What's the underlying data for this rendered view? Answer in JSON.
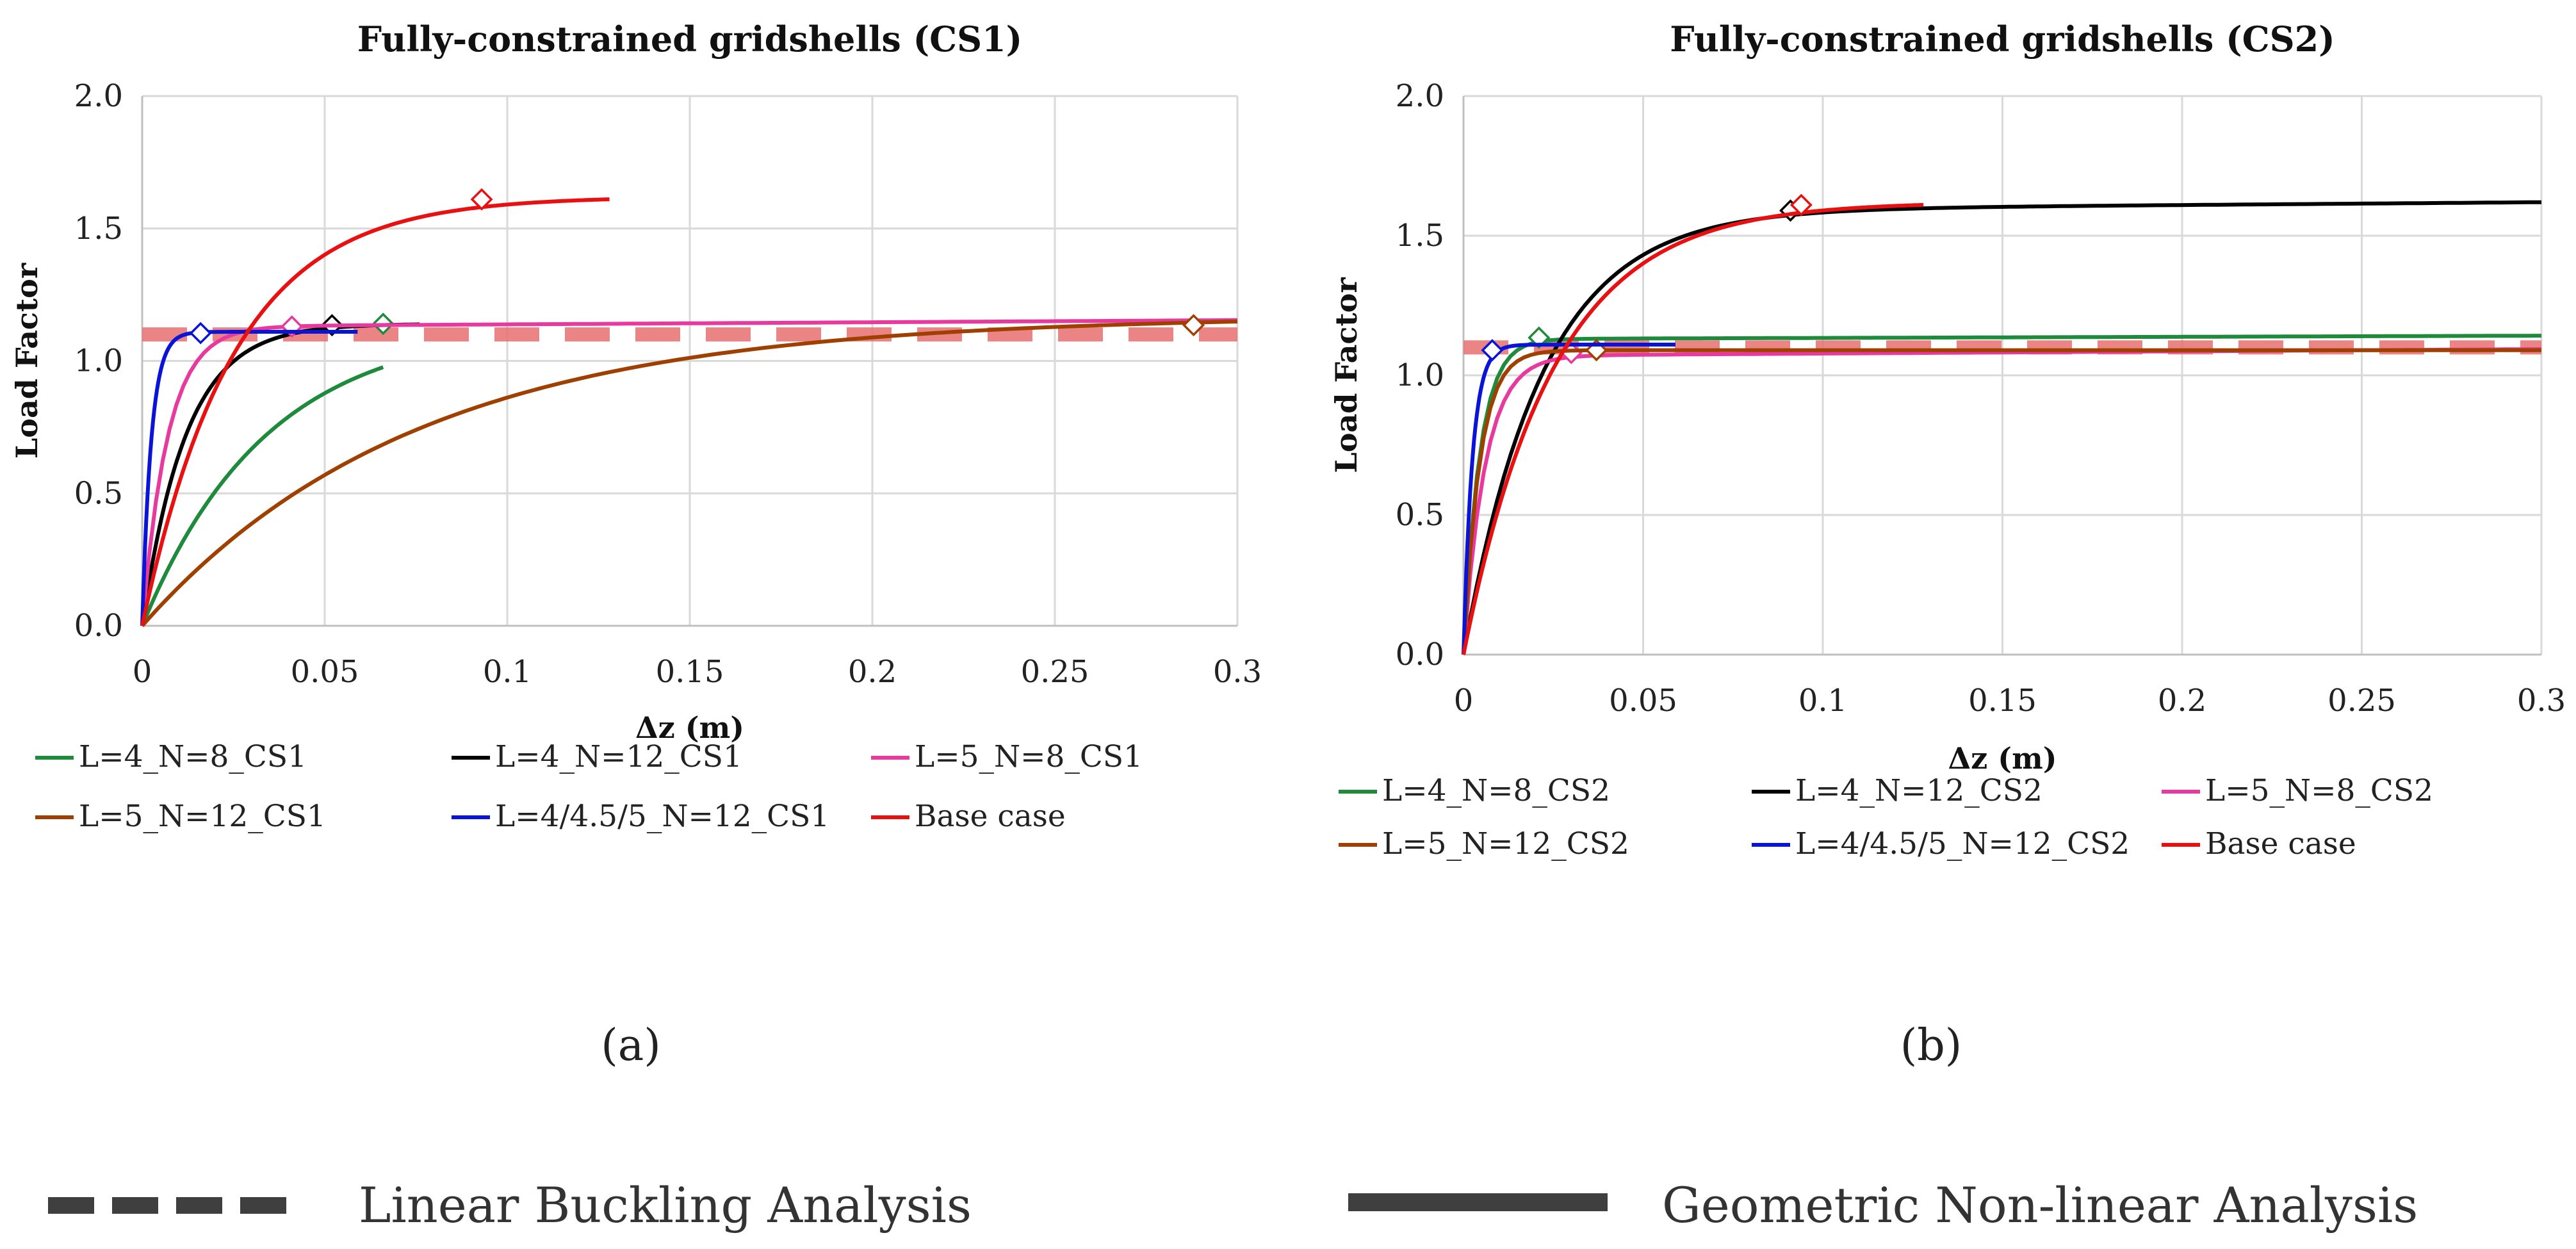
{
  "figure": {
    "caption_a": "(a)",
    "caption_b": "(b)",
    "line_legend": [
      {
        "label": "Linear Buckling Analysis",
        "style": "dashed"
      },
      {
        "label": "Geometric Non-linear Analysis",
        "style": "solid"
      }
    ],
    "line_legend_color": "#3f3f3f"
  },
  "chart_data": [
    {
      "type": "line",
      "title": "Fully-constrained gridshells (CS1)",
      "xlabel": "Δz (m)",
      "ylabel": "Load Factor",
      "xlim": [
        0,
        0.3
      ],
      "ylim": [
        0,
        2.0
      ],
      "xticks": [
        0,
        0.05,
        0.1,
        0.15,
        0.2,
        0.25,
        0.3
      ],
      "xtick_labels": [
        "0",
        "0.05",
        "0.1",
        "0.15",
        "0.2",
        "0.25",
        "0.3"
      ],
      "yticks": [
        0,
        0.5,
        1.0,
        1.5,
        2.0
      ],
      "ytick_labels": [
        "0.0",
        "0.5",
        "1.0",
        "1.5",
        "2.0"
      ],
      "grid": true,
      "legend_position": "bottom",
      "series": [
        {
          "name": "L=4_N=8_CS1",
          "color": "#1e8a3c",
          "curve": {
            "ymax": 1.14,
            "x0": 0.034,
            "xend": 0.066
          },
          "lba": 1.1,
          "marker": [
            0.066,
            1.14
          ]
        },
        {
          "name": "L=4_N=12_CS1",
          "color": "#000000",
          "curve": {
            "ymax": 1.14,
            "x0": 0.012,
            "xend": 0.076
          },
          "lba": 1.1,
          "marker": [
            0.052,
            1.135
          ]
        },
        {
          "name": "L=5_N=8_CS1",
          "color": "#e8399f",
          "curve": {
            "ymax": 1.13,
            "x0": 0.007,
            "xend": 0.3,
            "slope": 0.08
          },
          "lba": 1.1,
          "marker": [
            0.041,
            1.13
          ]
        },
        {
          "name": "L=5_N=12_CS1",
          "color": "#a04000",
          "curve": {
            "ymax": 1.17,
            "x0": 0.075,
            "xend": 0.3
          },
          "lba": 1.1,
          "marker": [
            0.288,
            1.135
          ]
        },
        {
          "name": "L=4/4.5/5_N=12_CS1",
          "color": "#0a14d8",
          "curve": {
            "ymax": 1.11,
            "x0": 0.0025,
            "xend": 0.059
          },
          "lba": 1.1,
          "marker": [
            0.016,
            1.105
          ]
        },
        {
          "name": "Base case",
          "color": "#e81010",
          "curve": {
            "ymax": 1.62,
            "x0": 0.025,
            "xend": 0.128
          },
          "lba": 1.1,
          "marker": [
            0.093,
            1.61
          ]
        }
      ]
    },
    {
      "type": "line",
      "title": "Fully-constrained gridshells (CS2)",
      "xlabel": "Δz (m)",
      "ylabel": "Load Factor",
      "xlim": [
        0,
        0.3
      ],
      "ylim": [
        0,
        2.0
      ],
      "xticks": [
        0,
        0.05,
        0.1,
        0.15,
        0.2,
        0.25,
        0.3
      ],
      "xtick_labels": [
        "0",
        "0.05",
        "0.1",
        "0.15",
        "0.2",
        "0.25",
        "0.3"
      ],
      "yticks": [
        0,
        0.5,
        1.0,
        1.5,
        2.0
      ],
      "ytick_labels": [
        "0.0",
        "0.5",
        "1.0",
        "1.5",
        "2.0"
      ],
      "grid": true,
      "legend_position": "bottom",
      "series": [
        {
          "name": "L=4_N=8_CS2",
          "color": "#1e8a3c",
          "curve": {
            "ymax": 1.13,
            "x0": 0.0045,
            "xend": 0.3,
            "slope": 0.04
          },
          "lba": 1.1,
          "marker": [
            0.021,
            1.135
          ]
        },
        {
          "name": "L=4_N=12_CS2",
          "color": "#000000",
          "curve": {
            "ymax": 1.59,
            "x0": 0.022,
            "xend": 0.3,
            "slope": 0.1
          },
          "lba": 1.1,
          "marker": [
            0.091,
            1.59
          ]
        },
        {
          "name": "L=5_N=8_CS2",
          "color": "#e8399f",
          "curve": {
            "ymax": 1.07,
            "x0": 0.006,
            "xend": 0.3,
            "slope": 0.08
          },
          "lba": 1.1,
          "marker": [
            0.03,
            1.08
          ]
        },
        {
          "name": "L=5_N=12_CS2",
          "color": "#a04000",
          "curve": {
            "ymax": 1.09,
            "x0": 0.0045,
            "xend": 0.3
          },
          "lba": 1.1,
          "marker": [
            0.037,
            1.09
          ]
        },
        {
          "name": "L=4/4.5/5_N=12_CS2",
          "color": "#0a14d8",
          "curve": {
            "ymax": 1.11,
            "x0": 0.0025,
            "xend": 0.059
          },
          "lba": 1.1,
          "marker": [
            0.008,
            1.09
          ]
        },
        {
          "name": "Base case",
          "color": "#e81010",
          "curve": {
            "ymax": 1.62,
            "x0": 0.025,
            "xend": 0.128
          },
          "lba": 1.1,
          "marker": [
            0.094,
            1.61
          ]
        }
      ]
    }
  ]
}
